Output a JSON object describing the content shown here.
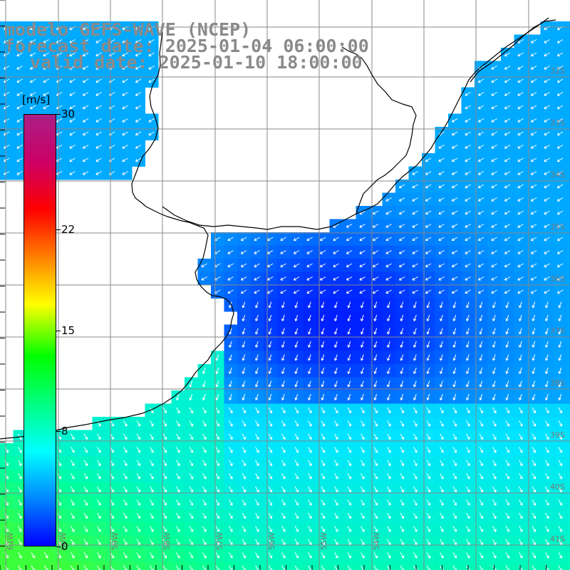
{
  "titles": {
    "line1": "modelo GEFS-WAVE (NCEP)",
    "line2": "forecast date: 2025-01-04 06:00:00",
    "line3": "valid date: 2025-01-10 18:00:00"
  },
  "colorbar": {
    "unit": "[m/s]",
    "ticks": [
      "30",
      "22",
      "15",
      "8",
      "0"
    ],
    "tick_values": [
      30,
      22,
      15,
      8,
      0
    ],
    "range": [
      0,
      30
    ],
    "colors": [
      "#0000ff",
      "#0088ff",
      "#00ffff",
      "#00ff80",
      "#00ff00",
      "#ffff00",
      "#ff8000",
      "#ff0000",
      "#cc0066",
      "#aa1f86"
    ]
  },
  "map": {
    "variable": "wind speed with direction arrows",
    "lat_labels": [
      "32S",
      "33S",
      "34S",
      "35S",
      "36S",
      "37S",
      "38S",
      "39S",
      "40S",
      "41S"
    ],
    "lon_labels": [
      "61W",
      "60W",
      "59W",
      "58W",
      "57W",
      "56W",
      "55W",
      "54W"
    ],
    "land_color": "#ffffff",
    "gridline_color": "#888888",
    "coast_color": "#000000"
  }
}
